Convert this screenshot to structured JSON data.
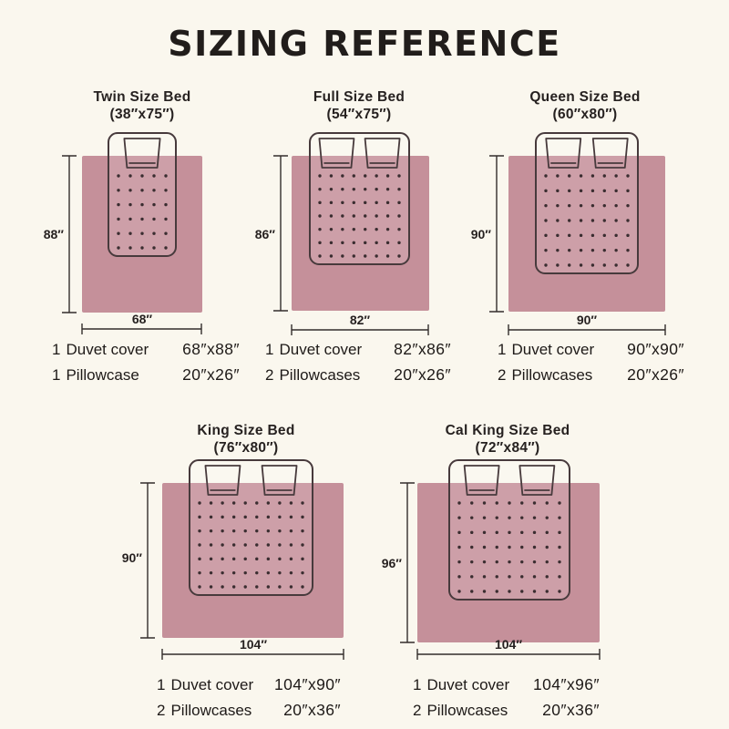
{
  "title": "SIZING REFERENCE",
  "colors": {
    "background": "#faf7ee",
    "duvet": "#c5909a",
    "mattress_overlay": "rgba(255,255,255,0.14)",
    "outline": "#473a3c",
    "dots": "#3a2d30",
    "dimension_lines": "#332d2b",
    "text": "#211d1b"
  },
  "beds": [
    {
      "id": "twin",
      "name": "Twin Size Bed",
      "mattress_size": "(38″x75″)",
      "duvet_height": "88″",
      "duvet_width": "68″",
      "items": [
        {
          "qty": "1",
          "label": "Duvet cover",
          "size": "68″x88″"
        },
        {
          "qty": "1",
          "label": "Pillowcase",
          "size": "20″x26″"
        }
      ]
    },
    {
      "id": "full",
      "name": "Full Size Bed",
      "mattress_size": "(54″x75″)",
      "duvet_height": "86″",
      "duvet_width": "82″",
      "items": [
        {
          "qty": "1",
          "label": "Duvet cover",
          "size": "82″x86″"
        },
        {
          "qty": "2",
          "label": "Pillowcases",
          "size": "20″x26″"
        }
      ]
    },
    {
      "id": "queen",
      "name": "Queen Size Bed",
      "mattress_size": "(60″x80″)",
      "duvet_height": "90″",
      "duvet_width": "90″",
      "items": [
        {
          "qty": "1",
          "label": "Duvet cover",
          "size": "90″x90″"
        },
        {
          "qty": "2",
          "label": "Pillowcases",
          "size": "20″x26″"
        }
      ]
    },
    {
      "id": "king",
      "name": "King Size Bed",
      "mattress_size": "(76″x80″)",
      "duvet_height": "90″",
      "duvet_width": "104″",
      "items": [
        {
          "qty": "1",
          "label": "Duvet cover",
          "size": "104″x90″"
        },
        {
          "qty": "2",
          "label": "Pillowcases",
          "size": "20″x36″"
        }
      ]
    },
    {
      "id": "cal_king",
      "name": "Cal King Size Bed",
      "mattress_size": "(72″x84″)",
      "duvet_height": "96″",
      "duvet_width": "104″",
      "items": [
        {
          "qty": "1",
          "label": "Duvet cover",
          "size": "104″x96″"
        },
        {
          "qty": "2",
          "label": "Pillowcases",
          "size": "20″x36″"
        }
      ]
    }
  ]
}
